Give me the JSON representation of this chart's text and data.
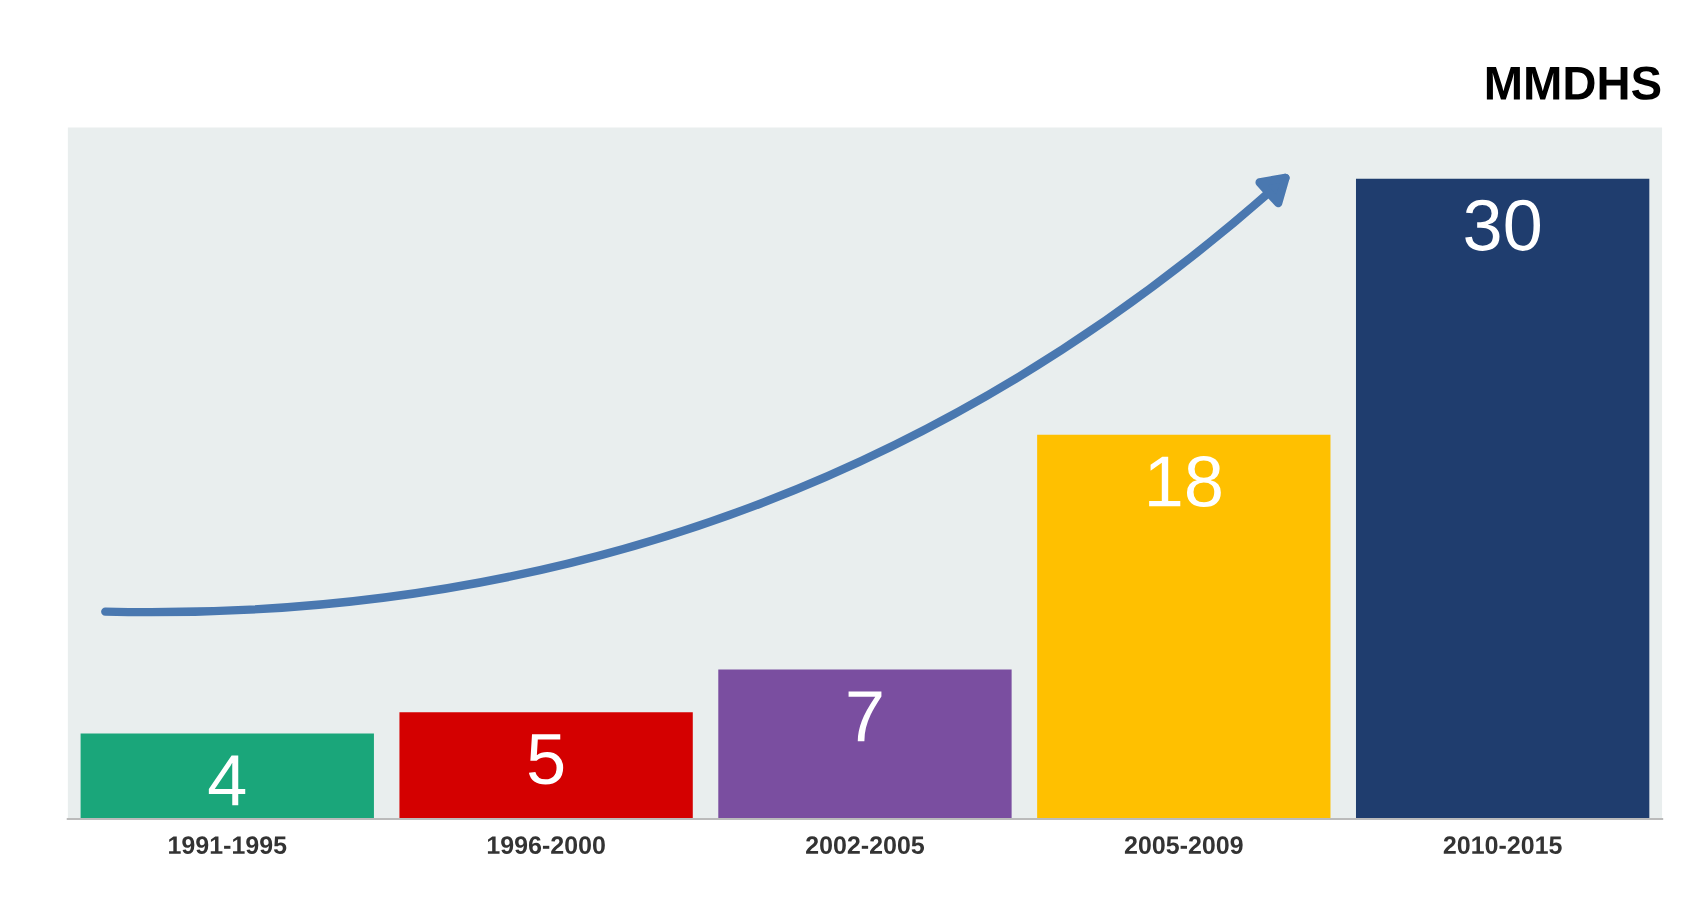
{
  "chart_data": {
    "type": "bar",
    "title": "MMDHS",
    "categories": [
      "1991-1995",
      "1996-2000",
      "2002-2005",
      "2005-2009",
      "2010-2015"
    ],
    "values": [
      4,
      5,
      7,
      18,
      30
    ],
    "colors": [
      "#1aa67a",
      "#d40000",
      "#7a4ea0",
      "#ffc000",
      "#1f3d6e"
    ],
    "data_labels": true,
    "grid": false,
    "legend": false
  }
}
